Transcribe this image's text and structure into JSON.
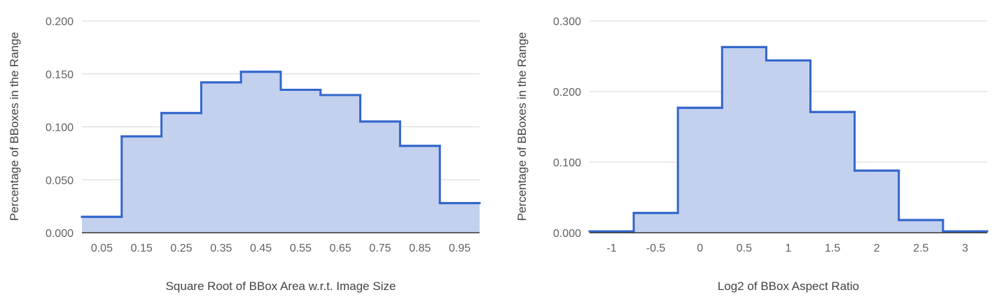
{
  "colors": {
    "line": "#3366cc",
    "fill": "#c3d1ee",
    "grid": "#d6d6d6"
  },
  "chart_data": [
    {
      "type": "area",
      "step": true,
      "title": "",
      "xlabel": "Square Root of BBox Area w.r.t. Image Size",
      "ylabel": "Percentage of BBoxes in the Range",
      "xlim": [
        0.0,
        1.0
      ],
      "ylim": [
        0.0,
        0.2
      ],
      "x_ticks": [
        "0.05",
        "0.15",
        "0.25",
        "0.35",
        "0.45",
        "0.55",
        "0.65",
        "0.75",
        "0.85",
        "0.95"
      ],
      "x_tick_values": [
        0.05,
        0.15,
        0.25,
        0.35,
        0.45,
        0.55,
        0.65,
        0.75,
        0.85,
        0.95
      ],
      "y_ticks": [
        "0.000",
        "0.050",
        "0.100",
        "0.150",
        "0.200"
      ],
      "y_tick_values": [
        0,
        0.05,
        0.1,
        0.15,
        0.2
      ],
      "bin_edges": [
        0.0,
        0.1,
        0.2,
        0.3,
        0.4,
        0.5,
        0.6,
        0.7,
        0.8,
        0.9,
        1.0
      ],
      "values": [
        0.015,
        0.091,
        0.113,
        0.142,
        0.152,
        0.135,
        0.13,
        0.105,
        0.082,
        0.028
      ],
      "grid": true
    },
    {
      "type": "area",
      "step": true,
      "title": "",
      "xlabel": "Log2 of BBox Aspect Ratio",
      "ylabel": "Percentage of BBoxes in the Range",
      "xlim": [
        -1.25,
        3.25
      ],
      "ylim": [
        0.0,
        0.3
      ],
      "x_ticks": [
        "-1",
        "-0.5",
        "0",
        "0.5",
        "1",
        "1.5",
        "2",
        "2.5",
        "3"
      ],
      "x_tick_values": [
        -1,
        -0.5,
        0,
        0.5,
        1,
        1.5,
        2,
        2.5,
        3
      ],
      "y_ticks": [
        "0.000",
        "0.100",
        "0.200",
        "0.300"
      ],
      "y_tick_values": [
        0,
        0.1,
        0.2,
        0.3
      ],
      "bin_edges": [
        -1.25,
        -0.75,
        -0.25,
        0.25,
        0.75,
        1.25,
        1.75,
        2.25,
        2.75,
        3.25
      ],
      "values": [
        0.002,
        0.028,
        0.177,
        0.263,
        0.244,
        0.171,
        0.088,
        0.018,
        0.002
      ],
      "grid": true
    }
  ]
}
